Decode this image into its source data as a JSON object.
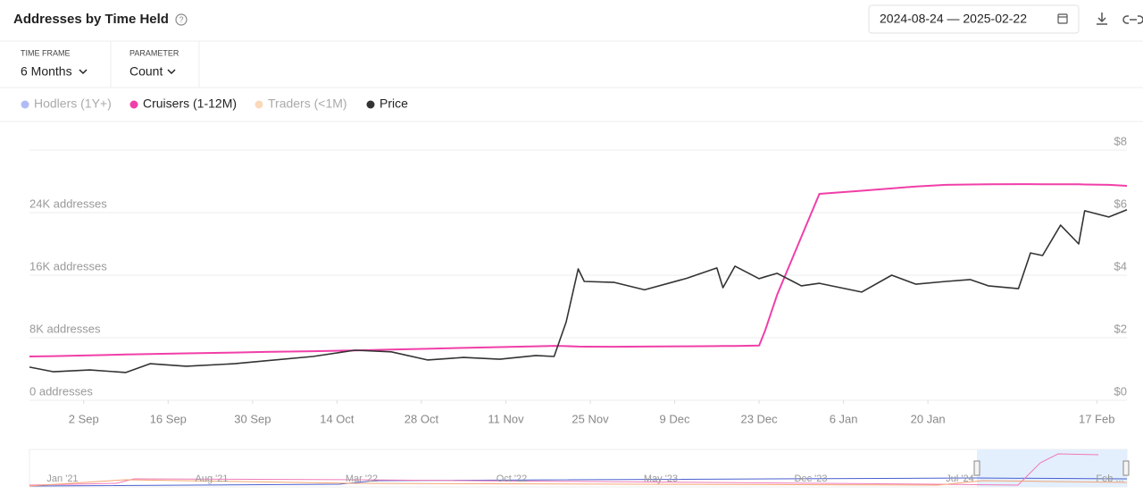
{
  "header": {
    "title": "Addresses by Time Held",
    "date_range": "2024-08-24 — 2025-02-22"
  },
  "controls": [
    {
      "label": "TIME FRAME",
      "value": "6 Months"
    },
    {
      "label": "PARAMETER",
      "value": "Count"
    }
  ],
  "chart_data": {
    "type": "line",
    "x": [
      "2024-08-24",
      "2024-08-28",
      "2024-09-03",
      "2024-09-09",
      "2024-09-13",
      "2024-09-19",
      "2024-09-27",
      "2024-10-02",
      "2024-10-10",
      "2024-10-17",
      "2024-10-23",
      "2024-10-29",
      "2024-11-04",
      "2024-11-10",
      "2024-11-16",
      "2024-11-19",
      "2024-11-21",
      "2024-11-23",
      "2024-11-24",
      "2024-11-29",
      "2024-12-04",
      "2024-12-11",
      "2024-12-16",
      "2024-12-17",
      "2024-12-19",
      "2024-12-23",
      "2024-12-24",
      "2024-12-26",
      "2024-12-30",
      "2025-01-02",
      "2025-01-09",
      "2025-01-14",
      "2025-01-18",
      "2025-01-23",
      "2025-01-27",
      "2025-01-30",
      "2025-02-04",
      "2025-02-06",
      "2025-02-08",
      "2025-02-11",
      "2025-02-14",
      "2025-02-15",
      "2025-02-19",
      "2025-02-22"
    ],
    "series": [
      {
        "name": "Hodlers (1Y+)",
        "color": "#7b8ef0",
        "visible": false
      },
      {
        "name": "Cruisers (1-12M)",
        "color": "#f03fa8",
        "visible": true,
        "values": [
          5600,
          5650,
          5750,
          5850,
          5920,
          6000,
          6100,
          6180,
          6280,
          6380,
          6480,
          6580,
          6700,
          6800,
          6900,
          6960,
          6920,
          6870,
          6860,
          6850,
          6870,
          6900,
          6930,
          6940,
          6950,
          7000,
          8900,
          13500,
          20900,
          26400,
          26800,
          27100,
          27350,
          27550,
          27600,
          27620,
          27650,
          27650,
          27640,
          27640,
          27620,
          27600,
          27560,
          27430
        ]
      },
      {
        "name": "Traders (<1M)",
        "color": "#f7bf8c",
        "visible": false
      },
      {
        "name": "Price",
        "color": "#333333",
        "visible": true,
        "axis": "y2",
        "values": [
          1.06,
          0.91,
          0.97,
          0.89,
          1.17,
          1.09,
          1.17,
          1.26,
          1.4,
          1.6,
          1.55,
          1.29,
          1.37,
          1.31,
          1.43,
          1.4,
          2.5,
          4.2,
          3.8,
          3.77,
          3.53,
          3.9,
          4.23,
          3.6,
          4.29,
          3.89,
          3.95,
          4.06,
          3.66,
          3.74,
          3.46,
          4.0,
          3.71,
          3.8,
          3.86,
          3.66,
          3.57,
          4.71,
          4.63,
          5.6,
          5.0,
          6.06,
          5.86,
          6.09
        ]
      }
    ],
    "xlim": [
      "2024-08-24",
      "2025-02-22"
    ],
    "xticks": [
      {
        "value": "2024-09-02",
        "label": "2 Sep"
      },
      {
        "value": "2024-09-16",
        "label": "16 Sep"
      },
      {
        "value": "2024-09-30",
        "label": "30 Sep"
      },
      {
        "value": "2024-10-14",
        "label": "14 Oct"
      },
      {
        "value": "2024-10-28",
        "label": "28 Oct"
      },
      {
        "value": "2024-11-11",
        "label": "11 Nov"
      },
      {
        "value": "2024-11-25",
        "label": "25 Nov"
      },
      {
        "value": "2024-12-09",
        "label": "9 Dec"
      },
      {
        "value": "2024-12-23",
        "label": "23 Dec"
      },
      {
        "value": "2025-01-06",
        "label": "6 Jan"
      },
      {
        "value": "2025-01-20",
        "label": "20 Jan"
      },
      {
        "value": "2025-02-17",
        "label": "17 Feb"
      }
    ],
    "ylim": [
      0,
      32000
    ],
    "yticks": [
      {
        "value": 0,
        "label": "0 addresses"
      },
      {
        "value": 8000,
        "label": "8K addresses"
      },
      {
        "value": 16000,
        "label": "16K addresses"
      },
      {
        "value": 24000,
        "label": "24K addresses"
      }
    ],
    "y2lim": [
      0,
      8
    ],
    "y2ticks": [
      {
        "value": 0,
        "label": "$0"
      },
      {
        "value": 2,
        "label": "$2"
      },
      {
        "value": 4,
        "label": "$4"
      },
      {
        "value": 6,
        "label": "$6"
      },
      {
        "value": 8,
        "label": "$8"
      }
    ],
    "grid": true
  },
  "navigator": {
    "labels": [
      "Jan '21",
      "Aug '21",
      "Mar '22",
      "Oct '22",
      "May '23",
      "Dec '23",
      "Jul '24",
      "Feb ..."
    ]
  }
}
